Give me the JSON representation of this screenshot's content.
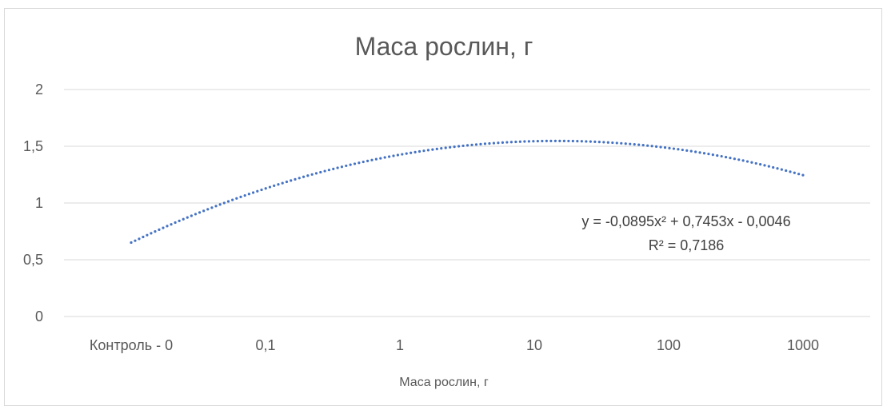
{
  "chart_data": {
    "type": "line",
    "title": "Маса рослин, г",
    "xlabel": "Маса рослин, г",
    "ylabel": "",
    "categories": [
      "Контроль - 0",
      "0,1",
      "1",
      "10",
      "100",
      "1000"
    ],
    "ylim": [
      0,
      2
    ],
    "y_ticks": [
      "0",
      "0,5",
      "1",
      "1,5",
      "2"
    ],
    "y_tick_values": [
      0,
      0.5,
      1,
      1.5,
      2
    ],
    "grid": true,
    "legend": "none",
    "trendline": {
      "type": "polynomial",
      "order": 2,
      "coefficients": [
        -0.0895,
        0.7453,
        -0.0046
      ],
      "equation": "y = -0,0895x² + 0,7453x - 0,0046",
      "r_squared": "R² = 0,7186",
      "color": "#4472c4",
      "style": "dotted"
    }
  }
}
